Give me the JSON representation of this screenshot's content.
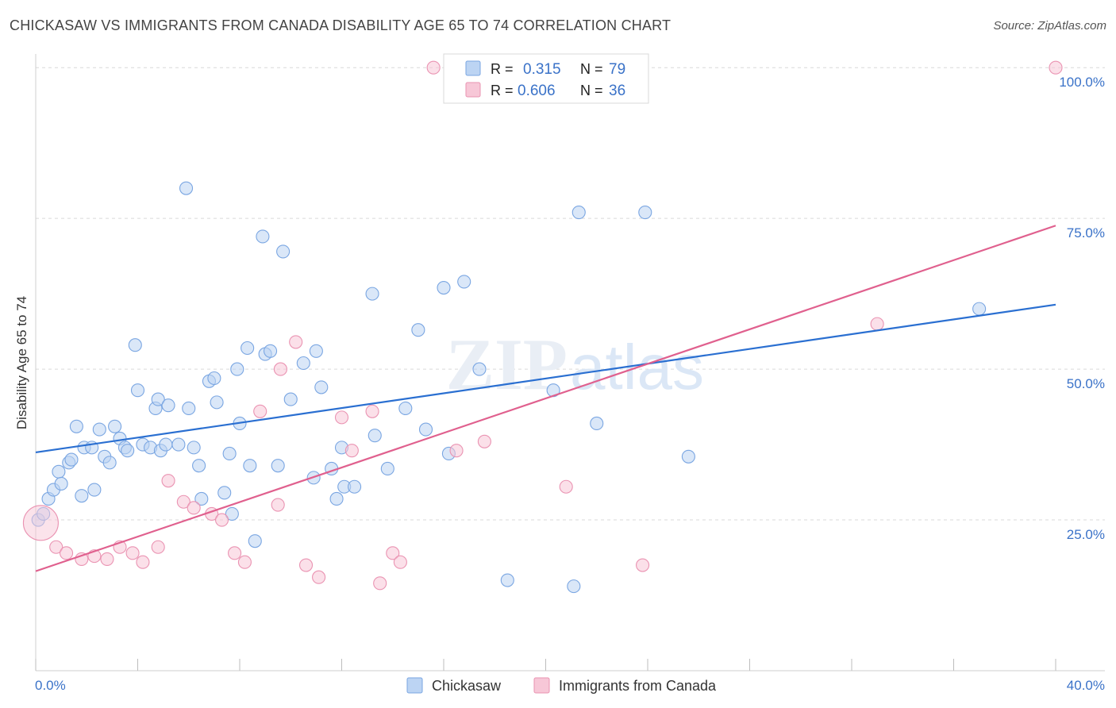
{
  "title": "CHICKASAW VS IMMIGRANTS FROM CANADA DISABILITY AGE 65 TO 74 CORRELATION CHART",
  "source": "Source: ZipAtlas.com",
  "watermark": {
    "zip": "ZIP",
    "atlas": "atlas"
  },
  "colors": {
    "blue": "#2a6fd1",
    "blue_fill": "#bcd4f3",
    "blue_stroke": "#7aa6e2",
    "pink": "#e0608e",
    "pink_fill": "#f7c7d7",
    "pink_stroke": "#ea93b2",
    "axis_text": "#3a72c8",
    "grid": "#d9d9d9"
  },
  "legend_box": {
    "rows": [
      {
        "series": "Chickasaw",
        "r_label": "R =",
        "r_value": "0.315",
        "n_label": "N =",
        "n_value": "79"
      },
      {
        "series": "Immigrants from Canada",
        "r_label": "R =",
        "r_value": "0.606",
        "n_label": "N =",
        "n_value": "36"
      }
    ]
  },
  "chart_data": {
    "type": "scatter",
    "title": "CHICKASAW VS IMMIGRANTS FROM CANADA DISABILITY AGE 65 TO 74 CORRELATION CHART",
    "xlabel": "",
    "ylabel": "Disability Age 65 to 74",
    "xlim": [
      0,
      40
    ],
    "ylim": [
      0,
      102
    ],
    "x_tick_labels": [
      "0.0%",
      "40.0%"
    ],
    "y_ticks": [
      25,
      50,
      75,
      100
    ],
    "y_tick_labels": [
      "25.0%",
      "50.0%",
      "75.0%",
      "100.0%"
    ],
    "grid": true,
    "legend": [
      "Chickasaw",
      "Immigrants from Canada"
    ],
    "series": [
      {
        "name": "Chickasaw",
        "trend": [
          [
            0,
            36.2
          ],
          [
            40,
            60.7
          ]
        ],
        "points": [
          [
            0.1,
            25
          ],
          [
            0.3,
            26
          ],
          [
            0.5,
            28.5
          ],
          [
            0.7,
            30
          ],
          [
            0.9,
            33
          ],
          [
            1.0,
            31
          ],
          [
            1.3,
            34.5
          ],
          [
            1.4,
            35
          ],
          [
            1.6,
            40.5
          ],
          [
            1.8,
            29
          ],
          [
            1.9,
            37
          ],
          [
            2.2,
            37
          ],
          [
            2.3,
            30
          ],
          [
            2.5,
            40
          ],
          [
            2.7,
            35.5
          ],
          [
            2.9,
            34.5
          ],
          [
            3.1,
            40.5
          ],
          [
            3.3,
            38.5
          ],
          [
            3.5,
            37
          ],
          [
            3.6,
            36.5
          ],
          [
            3.9,
            54
          ],
          [
            4.0,
            46.5
          ],
          [
            4.2,
            37.5
          ],
          [
            4.5,
            37
          ],
          [
            4.7,
            43.5
          ],
          [
            4.8,
            45
          ],
          [
            4.9,
            36.5
          ],
          [
            5.1,
            37.5
          ],
          [
            5.2,
            44
          ],
          [
            5.6,
            37.5
          ],
          [
            5.9,
            80
          ],
          [
            6.0,
            43.5
          ],
          [
            6.2,
            37
          ],
          [
            6.4,
            34
          ],
          [
            6.5,
            28.5
          ],
          [
            6.8,
            48
          ],
          [
            7.0,
            48.5
          ],
          [
            7.1,
            44.5
          ],
          [
            7.4,
            29.5
          ],
          [
            7.6,
            36
          ],
          [
            7.7,
            26
          ],
          [
            7.9,
            50
          ],
          [
            8.0,
            41
          ],
          [
            8.3,
            53.5
          ],
          [
            8.4,
            34
          ],
          [
            8.6,
            21.5
          ],
          [
            8.9,
            72
          ],
          [
            9.0,
            52.5
          ],
          [
            9.2,
            53
          ],
          [
            9.5,
            34
          ],
          [
            9.7,
            69.5
          ],
          [
            10.0,
            45
          ],
          [
            10.5,
            51
          ],
          [
            10.9,
            32
          ],
          [
            11.0,
            53
          ],
          [
            11.2,
            47
          ],
          [
            11.6,
            33.5
          ],
          [
            11.8,
            28.5
          ],
          [
            12.0,
            37
          ],
          [
            12.1,
            30.5
          ],
          [
            12.5,
            30.5
          ],
          [
            13.2,
            62.5
          ],
          [
            13.3,
            39
          ],
          [
            13.8,
            33.5
          ],
          [
            14.5,
            43.5
          ],
          [
            15.0,
            56.5
          ],
          [
            15.3,
            40
          ],
          [
            16.0,
            63.5
          ],
          [
            16.2,
            36
          ],
          [
            16.8,
            64.5
          ],
          [
            17.4,
            50
          ],
          [
            18.5,
            15
          ],
          [
            20.3,
            46.5
          ],
          [
            21.1,
            14
          ],
          [
            21.3,
            76
          ],
          [
            22.0,
            41
          ],
          [
            23.9,
            76
          ],
          [
            25.6,
            35.5
          ],
          [
            37.0,
            60
          ]
        ]
      },
      {
        "name": "Immigrants from Canada",
        "trend": [
          [
            0,
            16.5
          ],
          [
            40,
            73.8
          ]
        ],
        "points": [
          [
            0.2,
            24.5
          ],
          [
            0.8,
            20.5
          ],
          [
            1.2,
            19.5
          ],
          [
            1.8,
            18.5
          ],
          [
            2.3,
            19
          ],
          [
            2.8,
            18.5
          ],
          [
            3.3,
            20.5
          ],
          [
            3.8,
            19.5
          ],
          [
            4.2,
            18
          ],
          [
            4.8,
            20.5
          ],
          [
            5.2,
            31.5
          ],
          [
            5.8,
            28
          ],
          [
            6.2,
            27
          ],
          [
            6.9,
            26
          ],
          [
            7.3,
            25
          ],
          [
            7.8,
            19.5
          ],
          [
            8.2,
            18
          ],
          [
            8.8,
            43
          ],
          [
            9.5,
            27.5
          ],
          [
            9.6,
            50
          ],
          [
            10.2,
            54.5
          ],
          [
            10.6,
            17.5
          ],
          [
            11.1,
            15.5
          ],
          [
            12.0,
            42
          ],
          [
            12.4,
            36.5
          ],
          [
            13.2,
            43
          ],
          [
            13.5,
            14.5
          ],
          [
            14.0,
            19.5
          ],
          [
            14.3,
            18
          ],
          [
            15.6,
            100
          ],
          [
            16.5,
            36.5
          ],
          [
            17.6,
            38
          ],
          [
            20.8,
            30.5
          ],
          [
            23.8,
            17.5
          ],
          [
            33.0,
            57.5
          ],
          [
            40.0,
            100
          ]
        ]
      }
    ]
  },
  "bottom_legend": [
    "Chickasaw",
    "Immigrants from Canada"
  ]
}
